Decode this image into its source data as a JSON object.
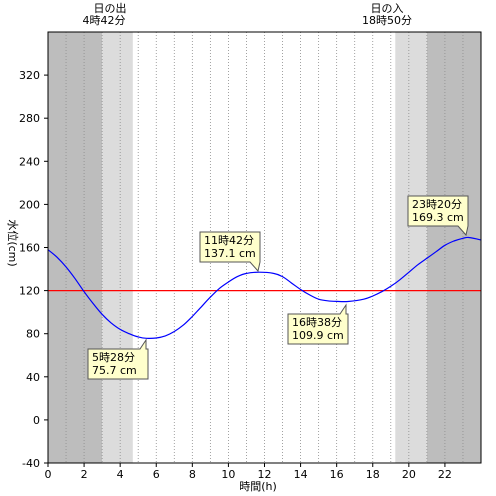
{
  "chart_data": {
    "type": "line",
    "xlabel": "時間(h)",
    "ylabel": "水位(cm)",
    "xlim": [
      0,
      24
    ],
    "ylim": [
      -40,
      360
    ],
    "xticks": [
      0,
      2,
      4,
      6,
      8,
      10,
      12,
      14,
      16,
      18,
      20,
      22
    ],
    "yticks": [
      -40,
      0,
      40,
      80,
      120,
      160,
      200,
      240,
      280,
      320
    ],
    "grid": "vertical dotted every 1h",
    "reference_line": {
      "value": 120,
      "color": "#ff0000"
    },
    "series": [
      {
        "color": "#0000ff",
        "x": [
          0,
          0.5,
          1,
          1.5,
          2,
          2.5,
          3,
          3.5,
          4,
          4.5,
          5,
          5.47,
          6,
          6.5,
          7,
          7.5,
          8,
          8.5,
          9,
          9.5,
          10,
          10.5,
          11,
          11.7,
          12.5,
          13,
          13.5,
          14,
          14.5,
          15,
          15.5,
          16,
          16.63,
          17.5,
          18,
          18.5,
          19,
          19.5,
          20,
          20.5,
          21,
          21.5,
          22,
          22.5,
          23,
          23.33,
          24
        ],
        "y": [
          158,
          151,
          142,
          131,
          119,
          108,
          98,
          90,
          84,
          80,
          77,
          75.7,
          76,
          78,
          82,
          88,
          96,
          105,
          114,
          122,
          128,
          133,
          136,
          137.1,
          136,
          133,
          127,
          121,
          116,
          112,
          110.5,
          110,
          109.9,
          112,
          115,
          119,
          124,
          130,
          137,
          144,
          150,
          156,
          162,
          166,
          168.5,
          169.3,
          167
        ]
      }
    ],
    "night_bands_hours": [
      [
        0,
        3
      ],
      [
        21,
        24
      ]
    ],
    "twilight_bands_hours": [
      [
        3,
        4.7
      ],
      [
        19.25,
        21
      ]
    ],
    "callouts": [
      {
        "time": "5時28分",
        "value": "75.7 cm",
        "x": 5.47,
        "y": 75.7
      },
      {
        "time": "11時42分",
        "value": "137.1 cm",
        "x": 11.7,
        "y": 137.1
      },
      {
        "time": "16時38分",
        "value": "109.9 cm",
        "x": 16.63,
        "y": 109.9
      },
      {
        "time": "23時20分",
        "value": "169.3 cm",
        "x": 23.33,
        "y": 169.3
      }
    ],
    "sunrise": {
      "label": "日の出",
      "time": "4時42分"
    },
    "sunset": {
      "label": "日の入",
      "time": "18時50分"
    }
  }
}
